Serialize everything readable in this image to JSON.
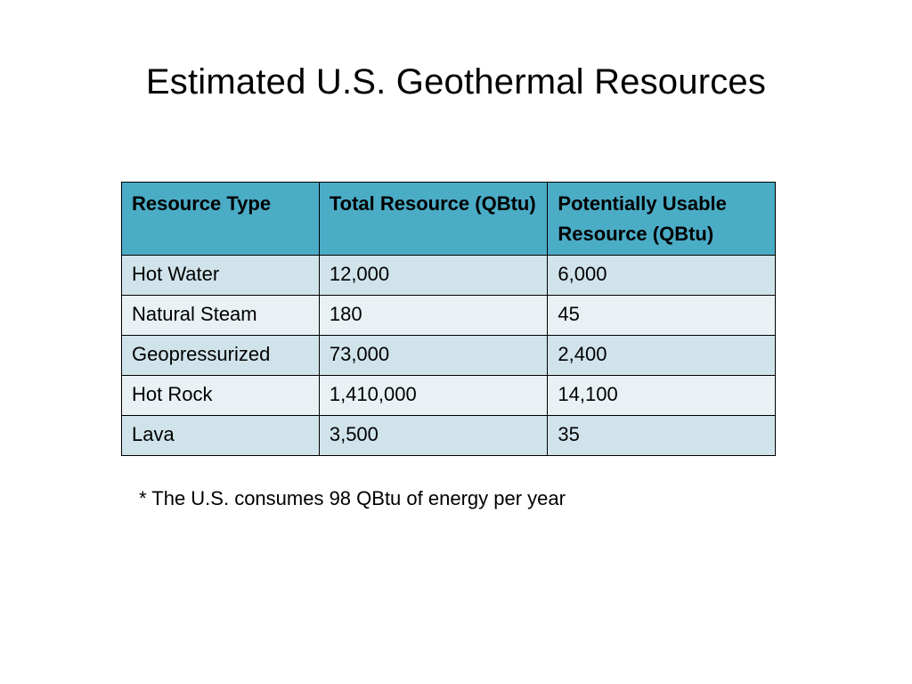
{
  "title": "Estimated U.S. Geothermal Resources",
  "colors": {
    "header_bg": "#4bacc6",
    "row_odd_bg": "#d0e3ea",
    "row_even_bg": "#e9f1f5",
    "border": "#000000"
  },
  "table": {
    "headers": [
      "Resource Type",
      "Total Resource (QBtu)",
      "Potentially Usable Resource (QBtu)"
    ],
    "rows": [
      [
        "Hot Water",
        "12,000",
        "6,000"
      ],
      [
        "Natural Steam",
        "180",
        "45"
      ],
      [
        "Geopressurized",
        "73,000",
        "2,400"
      ],
      [
        "Hot Rock",
        "1,410,000",
        "14,100"
      ],
      [
        "Lava",
        "3,500",
        "35"
      ]
    ]
  },
  "footnote": "* The U.S. consumes 98 QBtu of energy per year"
}
